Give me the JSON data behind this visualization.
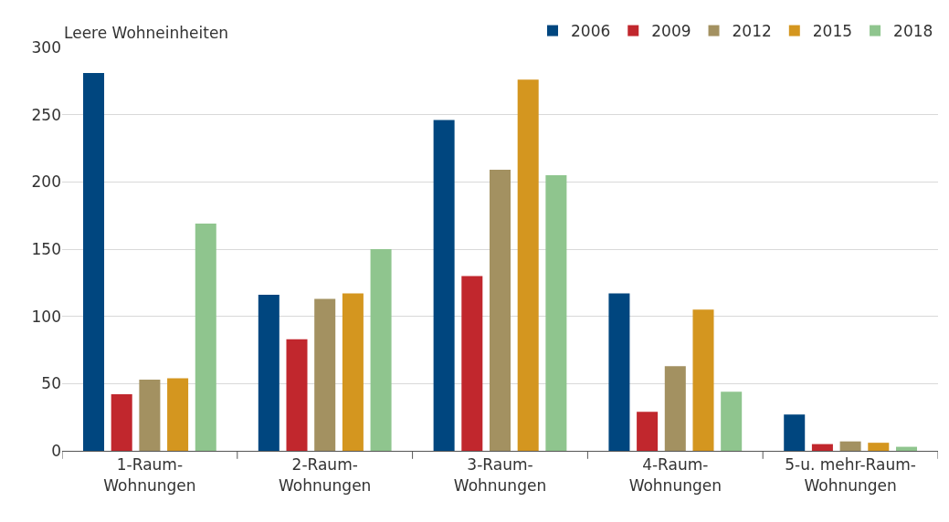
{
  "chart_data": {
    "type": "bar",
    "ylabel": "Leere Wohneinheiten",
    "categories": [
      "1-Raum-\nWohnungen",
      "2-Raum-\nWohnungen",
      "3-Raum-\nWohnungen",
      "4-Raum-\nWohnungen",
      "5-u. mehr-Raum-\nWohnungen"
    ],
    "series": [
      {
        "name": "2006",
        "color": "#00467f",
        "values": [
          281,
          116,
          246,
          117,
          27
        ]
      },
      {
        "name": "2009",
        "color": "#c1272d",
        "values": [
          42,
          83,
          130,
          29,
          5
        ]
      },
      {
        "name": "2012",
        "color": "#a39161",
        "values": [
          53,
          113,
          209,
          63,
          7
        ]
      },
      {
        "name": "2015",
        "color": "#d4961f",
        "values": [
          54,
          117,
          276,
          105,
          6
        ]
      },
      {
        "name": "2018",
        "color": "#8fc58e",
        "values": [
          169,
          150,
          205,
          44,
          3
        ]
      }
    ],
    "ylim": [
      0,
      300
    ],
    "yticks": [
      0,
      50,
      100,
      150,
      200,
      250,
      300
    ],
    "grid": "y",
    "legend": "top right"
  }
}
